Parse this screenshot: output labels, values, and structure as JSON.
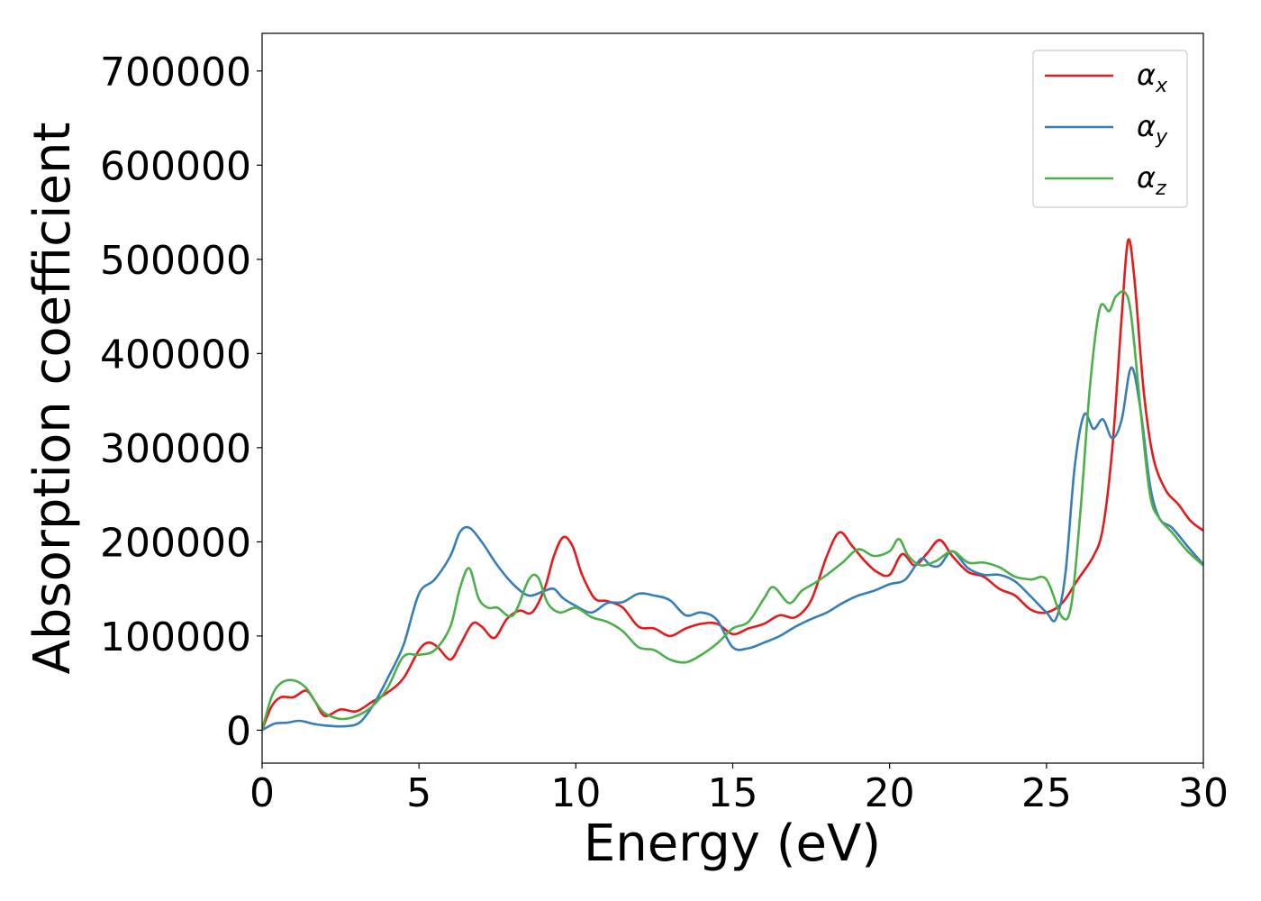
{
  "chart_data": {
    "type": "line",
    "title": "",
    "xlabel": "Energy (eV)",
    "ylabel": "Absorption coefficient",
    "xlim": [
      0,
      30
    ],
    "ylim": [
      -35000,
      740000
    ],
    "xticks": [
      0,
      5,
      10,
      15,
      20,
      25,
      30
    ],
    "xtick_labels": [
      "0",
      "5",
      "10",
      "15",
      "20",
      "25",
      "30"
    ],
    "yticks": [
      0,
      100000,
      200000,
      300000,
      400000,
      500000,
      600000,
      700000
    ],
    "ytick_labels": [
      "0",
      "100000",
      "200000",
      "300000",
      "400000",
      "500000",
      "600000",
      "700000"
    ],
    "grid": false,
    "legend_position": "top-right",
    "series": [
      {
        "name": "αx",
        "legend_symbol": "α",
        "legend_subscript": "x",
        "color": "#e41a1c",
        "x": [
          0,
          0.3,
          0.6,
          1.0,
          1.4,
          1.7,
          2.0,
          2.5,
          3.0,
          3.5,
          4.0,
          4.5,
          5.0,
          5.3,
          5.6,
          6.0,
          6.3,
          6.7,
          7.0,
          7.4,
          7.8,
          8.2,
          8.6,
          9.0,
          9.3,
          9.6,
          9.9,
          10.2,
          10.6,
          11.0,
          11.5,
          12.0,
          12.5,
          13.0,
          13.5,
          14.0,
          14.5,
          15.0,
          15.5,
          16.0,
          16.5,
          17.0,
          17.5,
          18.0,
          18.4,
          18.8,
          19.2,
          19.6,
          20.0,
          20.4,
          20.8,
          21.2,
          21.6,
          22.0,
          22.5,
          23.0,
          23.5,
          24.0,
          24.5,
          25.0,
          25.5,
          26.0,
          26.5,
          26.8,
          27.1,
          27.4,
          27.6,
          27.8,
          28.1,
          28.4,
          28.8,
          29.2,
          29.6,
          30.0
        ],
        "y": [
          0,
          25000,
          35000,
          35000,
          42000,
          30000,
          15000,
          22000,
          20000,
          30000,
          40000,
          55000,
          85000,
          93000,
          88000,
          75000,
          90000,
          113000,
          110000,
          98000,
          118000,
          127000,
          125000,
          150000,
          185000,
          205000,
          195000,
          165000,
          140000,
          137000,
          130000,
          110000,
          108000,
          100000,
          108000,
          113000,
          113000,
          102000,
          108000,
          113000,
          122000,
          120000,
          138000,
          185000,
          210000,
          196000,
          180000,
          168000,
          165000,
          187000,
          175000,
          188000,
          202000,
          185000,
          168000,
          163000,
          150000,
          143000,
          128000,
          125000,
          135000,
          160000,
          185000,
          215000,
          300000,
          440000,
          520000,
          480000,
          360000,
          290000,
          255000,
          240000,
          222000,
          212000
        ]
      },
      {
        "name": "αy",
        "legend_symbol": "α",
        "legend_subscript": "y",
        "color": "#377eb8",
        "x": [
          0,
          0.4,
          0.8,
          1.2,
          1.6,
          2.0,
          2.5,
          3.0,
          3.3,
          3.6,
          4.0,
          4.5,
          5.0,
          5.5,
          6.0,
          6.3,
          6.6,
          7.0,
          7.5,
          8.0,
          8.5,
          9.0,
          9.3,
          9.6,
          10.0,
          10.5,
          11.0,
          11.5,
          12.0,
          12.5,
          13.0,
          13.5,
          14.0,
          14.5,
          15.0,
          15.5,
          16.0,
          16.5,
          17.0,
          17.5,
          18.0,
          18.5,
          19.0,
          19.5,
          20.0,
          20.5,
          21.0,
          21.3,
          21.6,
          22.0,
          22.5,
          23.0,
          23.5,
          24.0,
          24.5,
          25.0,
          25.3,
          25.6,
          25.9,
          26.2,
          26.5,
          26.8,
          27.1,
          27.4,
          27.7,
          28.0,
          28.3,
          28.6,
          29.0,
          29.5,
          30.0
        ],
        "y": [
          0,
          7000,
          8000,
          10000,
          7000,
          5000,
          4000,
          6000,
          15000,
          30000,
          55000,
          90000,
          145000,
          160000,
          185000,
          210000,
          215000,
          200000,
          175000,
          155000,
          143000,
          148000,
          150000,
          140000,
          132000,
          125000,
          135000,
          136000,
          145000,
          143000,
          138000,
          122000,
          125000,
          117000,
          88000,
          87000,
          93000,
          100000,
          110000,
          118000,
          125000,
          135000,
          143000,
          148000,
          155000,
          160000,
          182000,
          175000,
          175000,
          190000,
          172000,
          165000,
          165000,
          158000,
          142000,
          125000,
          118000,
          165000,
          280000,
          335000,
          320000,
          330000,
          310000,
          330000,
          385000,
          340000,
          260000,
          225000,
          215000,
          195000,
          176000
        ]
      },
      {
        "name": "αz",
        "legend_symbol": "α",
        "legend_subscript": "z",
        "color": "#4daf4a",
        "x": [
          0,
          0.3,
          0.6,
          1.0,
          1.4,
          1.7,
          2.0,
          2.5,
          3.0,
          3.5,
          4.0,
          4.5,
          5.0,
          5.5,
          6.0,
          6.3,
          6.6,
          6.9,
          7.2,
          7.5,
          8.0,
          8.5,
          8.8,
          9.1,
          9.5,
          10.0,
          10.5,
          11.0,
          11.5,
          12.0,
          12.5,
          13.0,
          13.5,
          14.0,
          14.5,
          15.0,
          15.5,
          16.0,
          16.3,
          16.8,
          17.2,
          17.6,
          18.0,
          18.5,
          19.0,
          19.5,
          20.0,
          20.3,
          20.6,
          21.0,
          21.5,
          22.0,
          22.5,
          23.0,
          23.5,
          24.0,
          24.5,
          25.0,
          25.5,
          25.8,
          26.1,
          26.4,
          26.7,
          27.0,
          27.2,
          27.5,
          27.7,
          28.0,
          28.3,
          28.6,
          29.0,
          29.5,
          30.0
        ],
        "y": [
          0,
          35000,
          50000,
          53000,
          45000,
          30000,
          18000,
          12000,
          15000,
          25000,
          45000,
          78000,
          80000,
          85000,
          110000,
          150000,
          172000,
          140000,
          130000,
          130000,
          122000,
          160000,
          162000,
          135000,
          125000,
          130000,
          120000,
          115000,
          105000,
          88000,
          85000,
          75000,
          72000,
          80000,
          92000,
          108000,
          115000,
          140000,
          152000,
          135000,
          148000,
          156000,
          165000,
          178000,
          192000,
          185000,
          190000,
          203000,
          185000,
          175000,
          180000,
          190000,
          178000,
          178000,
          173000,
          163000,
          160000,
          160000,
          120000,
          135000,
          240000,
          370000,
          448000,
          445000,
          460000,
          465000,
          440000,
          340000,
          250000,
          225000,
          210000,
          190000,
          175000
        ]
      }
    ]
  }
}
